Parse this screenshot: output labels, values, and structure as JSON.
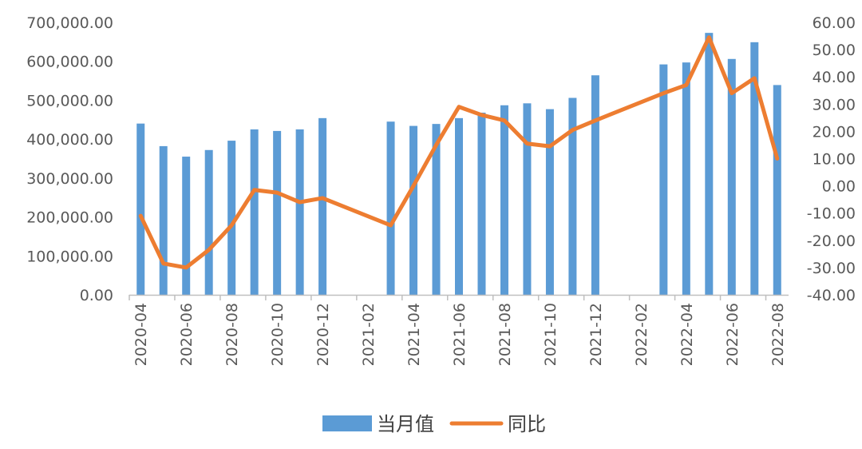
{
  "chart_data": {
    "type": "bar+line",
    "title": "",
    "xlabel": "",
    "ylabel_left": "",
    "ylabel_right": "",
    "ylim_left": [
      0,
      700000
    ],
    "ylim_right": [
      -40,
      60
    ],
    "grid": false,
    "legend_position": "bottom",
    "x_tick_labels": [
      "2020-04",
      "2020-06",
      "2020-08",
      "2020-10",
      "2020-12",
      "2021-02",
      "2021-04",
      "2021-06",
      "2021-08",
      "2021-10",
      "2021-12",
      "2022-02",
      "2022-04",
      "2022-06",
      "2022-08"
    ],
    "y_left_tick_labels": [
      "700,000.00",
      "600,000.00",
      "500,000.00",
      "400,000.00",
      "300,000.00",
      "200,000.00",
      "100,000.00",
      "0.00"
    ],
    "y_right_tick_labels": [
      "60.00",
      "50.00",
      "40.00",
      "30.00",
      "20.00",
      "10.00",
      "0.00",
      "-10.00",
      "-20.00",
      "-30.00",
      "-40.00"
    ],
    "categories": [
      "2020-04",
      "2020-05",
      "2020-06",
      "2020-07",
      "2020-08",
      "2020-09",
      "2020-10",
      "2020-11",
      "2020-12",
      "2021-01",
      "2021-02",
      "2021-03",
      "2021-04",
      "2021-05",
      "2021-06",
      "2021-07",
      "2021-08",
      "2021-09",
      "2021-10",
      "2021-11",
      "2021-12",
      "2022-01",
      "2022-02",
      "2022-03",
      "2022-04",
      "2022-05",
      "2022-06",
      "2022-07",
      "2022-08"
    ],
    "series": [
      {
        "name": "当月值",
        "type": "bar",
        "axis": "left",
        "color": "#5B9BD5",
        "values": [
          440000,
          382000,
          355000,
          372000,
          396000,
          425000,
          421000,
          425000,
          454000,
          null,
          null,
          445000,
          434000,
          439000,
          454000,
          468000,
          487000,
          492000,
          477000,
          506000,
          564000,
          null,
          null,
          592000,
          597000,
          673000,
          606000,
          649000,
          539000
        ]
      },
      {
        "name": "同比",
        "type": "line",
        "axis": "right",
        "color": "#ED7D31",
        "values": [
          -11,
          -28.5,
          -30,
          -23.5,
          -14.5,
          -1.5,
          -2.5,
          -6,
          -4.5,
          null,
          null,
          -14.5,
          0,
          15,
          29,
          26,
          24,
          15.5,
          14.5,
          20.5,
          24,
          null,
          null,
          34,
          37,
          54.5,
          34,
          39.5,
          10
        ]
      }
    ]
  }
}
